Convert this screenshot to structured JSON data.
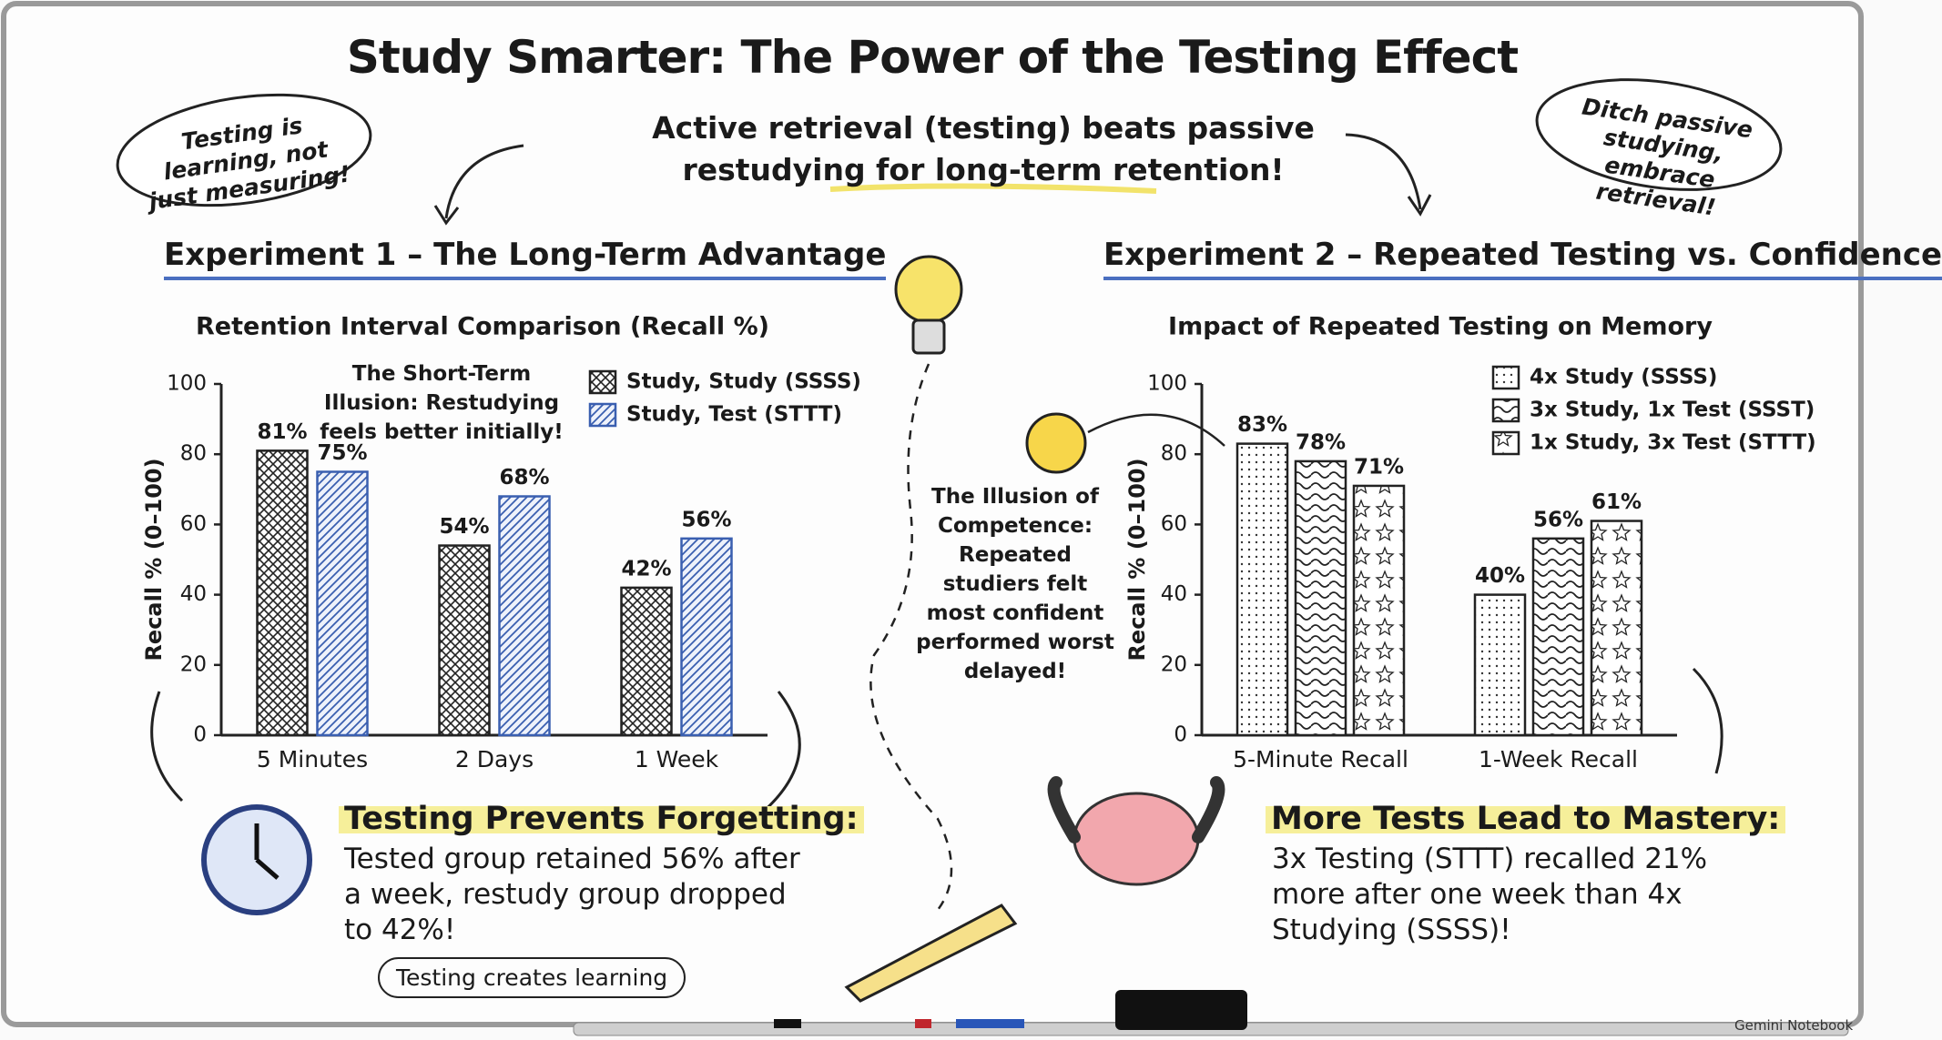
{
  "title": "Study Smarter: The Power of the Testing Effect",
  "subtitle": "Active retrieval (testing) beats passive restudying for long-term retention!",
  "bubbles": [
    "Testing is learning, not just measuring!",
    "Ditch passive studying, embrace retrieval!"
  ],
  "sections": [
    {
      "heading": "Experiment 1 – The Long-Term Advantage",
      "takeaway_title": "Testing Prevents Forgetting:",
      "takeaway_text": "Tested group retained 56% after a week, restudy group dropped to 42%!"
    },
    {
      "heading": "Experiment 2 – Repeated Testing vs. Confidence",
      "takeaway_title": "More Tests Lead to Mastery:",
      "takeaway_text": "3x Testing (STTT) recalled 21% more after one week than 4x Studying (SSSS)!"
    }
  ],
  "footer": "Testing creates learning",
  "watermark": "Gemini Notebook",
  "chart_data": [
    {
      "type": "bar",
      "title": "Retention Interval Comparison (Recall %)",
      "ylabel": "Recall % (0–100)",
      "annotation": "The Short-Term Illusion: Restudying feels better initially!",
      "categories": [
        "5 Minutes",
        "2 Days",
        "1 Week"
      ],
      "series": [
        {
          "name": "Study, Study (SSSS)",
          "color": "#222222",
          "pattern": "crosshatch",
          "values": [
            81,
            54,
            42
          ],
          "value_labels": [
            "81%",
            "54%",
            "42%"
          ]
        },
        {
          "name": "Study, Test (STTT)",
          "color": "#3a5fb0",
          "pattern": "diagonal",
          "values": [
            75,
            68,
            56
          ],
          "value_labels": [
            "75%",
            "68%",
            "56%"
          ]
        }
      ],
      "ylim": [
        0,
        100
      ],
      "yticks": [
        0,
        20,
        40,
        60,
        80,
        100
      ],
      "legend": "upper right"
    },
    {
      "type": "bar",
      "title": "Impact of Repeated Testing on Memory",
      "ylabel": "Recall % (0–100)",
      "annotation": "The Illusion of Competence: Repeated studiers felt most confident performed worst delayed!",
      "categories": [
        "5-Minute Recall",
        "1-Week Recall"
      ],
      "series": [
        {
          "name": "4x Study (SSSS)",
          "color": "#222222",
          "pattern": "dots",
          "values": [
            83,
            40
          ],
          "value_labels": [
            "83%",
            "40%"
          ]
        },
        {
          "name": "3x Study, 1x Test (SSST)",
          "color": "#222222",
          "pattern": "waves",
          "values": [
            78,
            56
          ],
          "value_labels": [
            "78%",
            "56%"
          ]
        },
        {
          "name": "1x Study, 3x Test (STTT)",
          "color": "#222222",
          "pattern": "stars",
          "values": [
            71,
            61
          ],
          "value_labels": [
            "71%",
            "61%"
          ]
        }
      ],
      "ylim": [
        0,
        100
      ],
      "yticks": [
        0,
        20,
        40,
        60,
        80,
        100
      ],
      "legend": "upper right"
    }
  ]
}
